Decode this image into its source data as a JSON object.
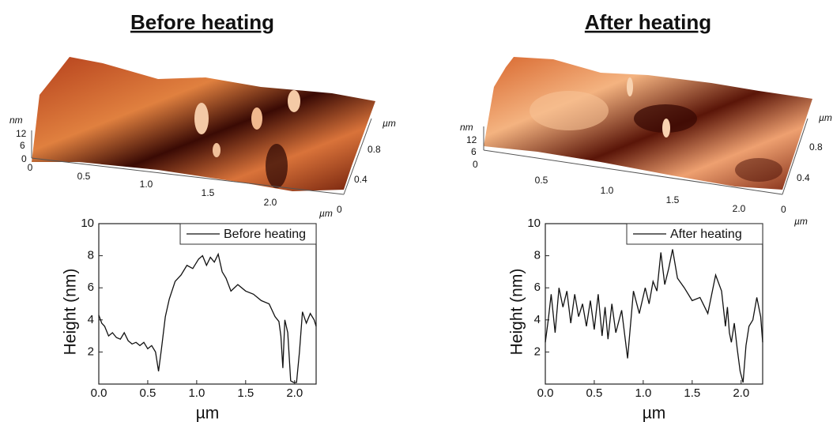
{
  "titles": [
    "Before heating",
    "After heating"
  ],
  "surfaces": [
    {
      "z_unit": "nm",
      "z_ticks": [
        "12",
        "6",
        "0"
      ],
      "x_ticks": [
        "0",
        "0.5",
        "1.0",
        "1.5",
        "2.0"
      ],
      "x_unit": "µm",
      "y_ticks": [
        "0",
        "0.4",
        "0.8"
      ],
      "y_unit": "µm"
    },
    {
      "z_unit": "nm",
      "z_ticks": [
        "12",
        "6",
        "0"
      ],
      "x_ticks": [
        "0.5",
        "1.0",
        "1.5",
        "2.0"
      ],
      "x_unit": "µm",
      "y_ticks": [
        "0",
        "0.4",
        "0.8"
      ],
      "y_unit": "µm"
    }
  ],
  "chart_data": [
    {
      "type": "line",
      "xlabel": "µm",
      "ylabel": "Height (nm)",
      "legend": "upper right",
      "xlim": [
        0,
        2.22
      ],
      "ylim": [
        0,
        10
      ],
      "xticks": [
        {
          "value": 0,
          "label": "0.0"
        },
        0.5,
        {
          "value": 1,
          "label": "1.0"
        },
        1.5,
        {
          "value": 2,
          "label": "2.0"
        }
      ],
      "yticks": [
        2,
        4,
        6,
        8,
        10
      ],
      "x": [
        0,
        0.03,
        0.06,
        0.1,
        0.14,
        0.18,
        0.22,
        0.26,
        0.3,
        0.34,
        0.38,
        0.42,
        0.46,
        0.5,
        0.54,
        0.58,
        0.61,
        0.64,
        0.68,
        0.72,
        0.78,
        0.84,
        0.9,
        0.96,
        1.02,
        1.06,
        1.1,
        1.14,
        1.18,
        1.22,
        1.26,
        1.3,
        1.35,
        1.42,
        1.5,
        1.58,
        1.66,
        1.74,
        1.8,
        1.84,
        1.86,
        1.88,
        1.9,
        1.93,
        1.96,
        1.99,
        2.02,
        2.05,
        2.08,
        2.12,
        2.16,
        2.2,
        2.22
      ],
      "series": [
        {
          "name": "Before heating",
          "color": "#111111",
          "values": [
            4.3,
            3.8,
            3.6,
            3.0,
            3.2,
            2.9,
            2.8,
            3.2,
            2.7,
            2.5,
            2.6,
            2.4,
            2.6,
            2.2,
            2.4,
            2.0,
            0.8,
            2.2,
            4.2,
            5.3,
            6.4,
            6.8,
            7.4,
            7.2,
            7.8,
            8.0,
            7.4,
            7.9,
            7.6,
            8.1,
            7.0,
            6.6,
            5.8,
            6.2,
            5.8,
            5.6,
            5.2,
            5.0,
            4.2,
            3.9,
            3.0,
            1.0,
            4.0,
            3.2,
            0.2,
            0.1,
            0.1,
            2.0,
            4.5,
            3.8,
            4.4,
            4.0,
            3.6
          ]
        }
      ]
    },
    {
      "type": "line",
      "xlabel": "µm",
      "ylabel": "Height (nm)",
      "legend": "upper right",
      "xlim": [
        0,
        2.22
      ],
      "ylim": [
        0,
        10
      ],
      "xticks": [
        {
          "value": 0,
          "label": "0.0"
        },
        0.5,
        {
          "value": 1,
          "label": "1.0"
        },
        1.5,
        {
          "value": 2,
          "label": "2.0"
        }
      ],
      "yticks": [
        2,
        4,
        6,
        8,
        10
      ],
      "x": [
        0,
        0.03,
        0.06,
        0.1,
        0.14,
        0.18,
        0.22,
        0.26,
        0.3,
        0.34,
        0.38,
        0.42,
        0.46,
        0.5,
        0.54,
        0.58,
        0.61,
        0.64,
        0.68,
        0.72,
        0.78,
        0.84,
        0.9,
        0.96,
        1.02,
        1.06,
        1.1,
        1.14,
        1.18,
        1.22,
        1.26,
        1.3,
        1.35,
        1.42,
        1.5,
        1.58,
        1.66,
        1.74,
        1.8,
        1.84,
        1.86,
        1.88,
        1.9,
        1.93,
        1.96,
        1.99,
        2.02,
        2.05,
        2.08,
        2.12,
        2.16,
        2.2,
        2.22
      ],
      "series": [
        {
          "name": "After heating",
          "color": "#111111",
          "values": [
            2.6,
            4.0,
            5.6,
            3.2,
            6.0,
            4.8,
            5.8,
            3.8,
            5.6,
            4.2,
            5.0,
            3.6,
            5.2,
            3.4,
            5.6,
            3.0,
            4.8,
            2.8,
            5.0,
            3.2,
            4.6,
            1.6,
            5.8,
            4.4,
            6.0,
            5.0,
            6.4,
            5.8,
            8.2,
            6.2,
            7.2,
            8.4,
            6.6,
            6.0,
            5.2,
            5.4,
            4.4,
            6.8,
            5.8,
            3.6,
            4.8,
            3.2,
            2.6,
            3.8,
            2.2,
            0.8,
            0.1,
            2.4,
            3.6,
            4.0,
            5.4,
            4.2,
            2.6
          ]
        }
      ]
    }
  ]
}
